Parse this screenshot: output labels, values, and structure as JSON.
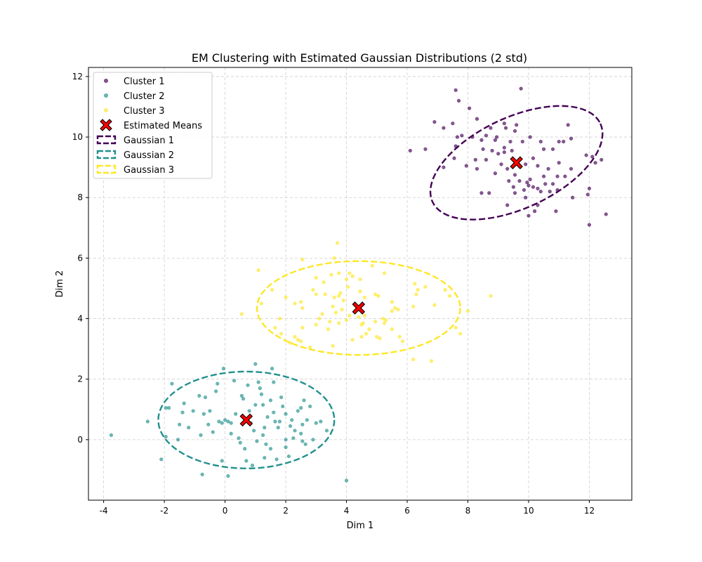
{
  "chart_data": {
    "type": "scatter",
    "title": "EM Clustering with Estimated Gaussian Distributions (2 std)",
    "xlabel": "Dim 1",
    "ylabel": "Dim 2",
    "xlim": [
      -4.5,
      13.4
    ],
    "ylim": [
      -2.0,
      12.3
    ],
    "xticks": [
      -4,
      -2,
      0,
      2,
      4,
      6,
      8,
      10,
      12
    ],
    "yticks": [
      0,
      2,
      4,
      6,
      8,
      10,
      12
    ],
    "grid": true,
    "legend_position": "top-left",
    "series": [
      {
        "name": "Cluster 1",
        "kind": "points",
        "color": "#440154",
        "points": [
          [
            7.6,
            11.55
          ],
          [
            9.75,
            11.6
          ],
          [
            7.7,
            11.2
          ],
          [
            8.05,
            10.95
          ],
          [
            8.3,
            10.6
          ],
          [
            6.9,
            10.5
          ],
          [
            7.5,
            10.45
          ],
          [
            9.2,
            10.45
          ],
          [
            9.6,
            10.4
          ],
          [
            11.3,
            10.4
          ],
          [
            7.2,
            10.3
          ],
          [
            8.75,
            10.3
          ],
          [
            9.25,
            10.3
          ],
          [
            9.55,
            10.2
          ],
          [
            8.15,
            10.0
          ],
          [
            8.6,
            10.05
          ],
          [
            8.95,
            10.0
          ],
          [
            10.05,
            10.0
          ],
          [
            11.4,
            9.95
          ],
          [
            7.8,
            10.05
          ],
          [
            8.45,
            9.9
          ],
          [
            8.9,
            9.9
          ],
          [
            9.4,
            9.85
          ],
          [
            9.8,
            9.85
          ],
          [
            10.4,
            9.85
          ],
          [
            11.0,
            9.85
          ],
          [
            11.15,
            9.85
          ],
          [
            7.6,
            9.7
          ],
          [
            8.5,
            9.6
          ],
          [
            8.8,
            9.55
          ],
          [
            9.2,
            9.5
          ],
          [
            9.45,
            9.55
          ],
          [
            10.8,
            9.6
          ],
          [
            9.0,
            9.45
          ],
          [
            11.9,
            9.4
          ],
          [
            12.1,
            9.35
          ],
          [
            7.55,
            9.3
          ],
          [
            8.25,
            9.25
          ],
          [
            8.6,
            9.25
          ],
          [
            10.15,
            9.3
          ],
          [
            12.4,
            9.25
          ],
          [
            11.0,
            9.15
          ],
          [
            12.2,
            9.15
          ],
          [
            7.95,
            9.05
          ],
          [
            9.1,
            9.1
          ],
          [
            9.9,
            9.1
          ],
          [
            10.3,
            9.05
          ],
          [
            7.2,
            9.0
          ],
          [
            8.3,
            8.95
          ],
          [
            9.3,
            8.95
          ],
          [
            10.65,
            8.95
          ],
          [
            11.4,
            8.95
          ],
          [
            8.9,
            8.8
          ],
          [
            9.55,
            8.75
          ],
          [
            10.5,
            8.7
          ],
          [
            10.95,
            8.7
          ],
          [
            11.2,
            8.7
          ],
          [
            10.05,
            8.6
          ],
          [
            9.95,
            8.5
          ],
          [
            10.0,
            8.4
          ],
          [
            10.55,
            8.45
          ],
          [
            10.8,
            8.45
          ],
          [
            9.35,
            8.55
          ],
          [
            9.7,
            8.55
          ],
          [
            10.15,
            8.35
          ],
          [
            10.3,
            8.3
          ],
          [
            9.5,
            8.35
          ],
          [
            10.95,
            8.25
          ],
          [
            9.85,
            8.25
          ],
          [
            10.4,
            8.2
          ],
          [
            10.7,
            8.2
          ],
          [
            11.95,
            8.1
          ],
          [
            9.55,
            8.15
          ],
          [
            8.45,
            8.15
          ],
          [
            8.7,
            8.15
          ],
          [
            9.9,
            8.0
          ],
          [
            11.45,
            8.0
          ],
          [
            12.0,
            8.3
          ],
          [
            9.3,
            7.75
          ],
          [
            10.3,
            7.75
          ],
          [
            10.2,
            7.55
          ],
          [
            10.9,
            7.55
          ],
          [
            10.0,
            7.4
          ],
          [
            12.55,
            7.45
          ],
          [
            12.0,
            7.1
          ],
          [
            6.1,
            9.55
          ],
          [
            6.6,
            9.6
          ],
          [
            7.65,
            10.0
          ],
          [
            9.2,
            9.65
          ],
          [
            10.5,
            9.6
          ]
        ]
      },
      {
        "name": "Cluster 2",
        "kind": "points",
        "color": "#21918c",
        "points": [
          [
            -3.75,
            0.15
          ],
          [
            -2.55,
            0.6
          ],
          [
            -2.1,
            -0.65
          ],
          [
            -1.95,
            0.1
          ],
          [
            -1.85,
            1.05
          ],
          [
            -1.95,
            1.05
          ],
          [
            -1.75,
            1.85
          ],
          [
            -1.55,
            0.0
          ],
          [
            -1.5,
            0.5
          ],
          [
            -1.4,
            0.9
          ],
          [
            -1.35,
            1.2
          ],
          [
            -1.2,
            0.4
          ],
          [
            -1.05,
            0.95
          ],
          [
            -0.85,
            1.45
          ],
          [
            -0.8,
            0.15
          ],
          [
            -0.7,
            0.85
          ],
          [
            -0.65,
            1.4
          ],
          [
            -0.55,
            0.5
          ],
          [
            -0.4,
            0.25
          ],
          [
            -0.3,
            1.6
          ],
          [
            -0.25,
            1.85
          ],
          [
            -0.2,
            0.6
          ],
          [
            -0.1,
            0.55
          ],
          [
            0.0,
            0.65
          ],
          [
            0.1,
            0.6
          ],
          [
            -0.05,
            2.35
          ],
          [
            0.2,
            0.2
          ],
          [
            0.2,
            0.55
          ],
          [
            0.35,
            0.85
          ],
          [
            0.55,
            1.45
          ],
          [
            0.6,
            1.35
          ],
          [
            0.75,
            1.8
          ],
          [
            0.85,
            0.55
          ],
          [
            1.0,
            2.5
          ],
          [
            1.1,
            1.9
          ],
          [
            1.15,
            1.7
          ],
          [
            1.2,
            1.5
          ],
          [
            1.0,
            1.15
          ],
          [
            0.95,
            0.3
          ],
          [
            1.05,
            -0.05
          ],
          [
            0.5,
            -0.1
          ],
          [
            0.65,
            -0.3
          ],
          [
            1.25,
            1.15
          ],
          [
            1.4,
            0.75
          ],
          [
            1.5,
            1.3
          ],
          [
            1.55,
            2.35
          ],
          [
            1.6,
            0.9
          ],
          [
            1.65,
            0.6
          ],
          [
            1.75,
            0.4
          ],
          [
            1.8,
            0.6
          ],
          [
            1.9,
            1.1
          ],
          [
            2.0,
            0.85
          ],
          [
            2.15,
            0.45
          ],
          [
            2.2,
            0.65
          ],
          [
            2.25,
            0.05
          ],
          [
            2.4,
            0.95
          ],
          [
            2.5,
            0.2
          ],
          [
            2.55,
            0.5
          ],
          [
            2.6,
            1.3
          ],
          [
            2.7,
            0.65
          ],
          [
            2.8,
            1.1
          ],
          [
            2.9,
            0.0
          ],
          [
            3.0,
            0.55
          ],
          [
            3.15,
            0.6
          ],
          [
            3.35,
            0.3
          ],
          [
            1.5,
            -0.3
          ],
          [
            1.3,
            -0.6
          ],
          [
            1.7,
            -0.65
          ],
          [
            2.0,
            -0.25
          ],
          [
            2.1,
            -0.55
          ],
          [
            2.55,
            -0.05
          ],
          [
            2.65,
            -0.15
          ],
          [
            0.7,
            -0.7
          ],
          [
            0.9,
            -0.85
          ],
          [
            0.1,
            -1.2
          ],
          [
            -0.75,
            -1.15
          ],
          [
            -0.1,
            -0.7
          ],
          [
            1.35,
            -0.15
          ],
          [
            1.25,
            0.15
          ],
          [
            2.0,
            0.0
          ],
          [
            4.0,
            -1.35
          ],
          [
            1.6,
            1.9
          ],
          [
            2.5,
            1.05
          ],
          [
            0.3,
            1.95
          ],
          [
            1.85,
            1.4
          ],
          [
            0.45,
            0.05
          ],
          [
            -0.5,
            0.95
          ],
          [
            0.8,
            0.95
          ],
          [
            1.3,
            0.4
          ],
          [
            2.3,
            0.3
          ]
        ]
      },
      {
        "name": "Cluster 3",
        "kind": "points",
        "color": "#fde725",
        "points": [
          [
            3.7,
            6.5
          ],
          [
            3.6,
            6.0
          ],
          [
            2.55,
            5.95
          ],
          [
            4.85,
            5.75
          ],
          [
            1.1,
            5.6
          ],
          [
            3.75,
            5.5
          ],
          [
            4.1,
            5.5
          ],
          [
            5.25,
            5.5
          ],
          [
            3.5,
            5.45
          ],
          [
            4.2,
            5.4
          ],
          [
            3.0,
            5.35
          ],
          [
            4.0,
            5.3
          ],
          [
            4.45,
            5.3
          ],
          [
            3.25,
            5.2
          ],
          [
            4.05,
            5.05
          ],
          [
            1.55,
            4.95
          ],
          [
            4.45,
            4.9
          ],
          [
            6.25,
            5.15
          ],
          [
            6.35,
            4.95
          ],
          [
            6.6,
            5.05
          ],
          [
            7.25,
            4.95
          ],
          [
            3.0,
            4.8
          ],
          [
            3.3,
            4.8
          ],
          [
            4.95,
            4.8
          ],
          [
            5.05,
            4.75
          ],
          [
            6.3,
            4.8
          ],
          [
            7.4,
            4.75
          ],
          [
            8.75,
            4.75
          ],
          [
            2.0,
            4.7
          ],
          [
            2.5,
            4.55
          ],
          [
            3.6,
            4.7
          ],
          [
            3.75,
            4.75
          ],
          [
            3.8,
            4.85
          ],
          [
            3.9,
            4.6
          ],
          [
            4.6,
            4.7
          ],
          [
            2.3,
            4.5
          ],
          [
            5.5,
            4.55
          ],
          [
            6.2,
            4.4
          ],
          [
            6.9,
            4.45
          ],
          [
            1.2,
            4.5
          ],
          [
            2.55,
            4.35
          ],
          [
            3.55,
            4.4
          ],
          [
            3.85,
            4.3
          ],
          [
            4.3,
            4.3
          ],
          [
            5.6,
            4.35
          ],
          [
            5.7,
            4.3
          ],
          [
            5.5,
            4.25
          ],
          [
            0.55,
            4.15
          ],
          [
            3.65,
            4.2
          ],
          [
            3.2,
            4.15
          ],
          [
            4.1,
            4.1
          ],
          [
            4.4,
            4.05
          ],
          [
            4.6,
            4.1
          ],
          [
            8.0,
            4.25
          ],
          [
            1.8,
            4.0
          ],
          [
            3.1,
            4.0
          ],
          [
            3.45,
            3.9
          ],
          [
            3.75,
            3.85
          ],
          [
            4.0,
            3.95
          ],
          [
            4.5,
            3.8
          ],
          [
            4.95,
            3.9
          ],
          [
            5.2,
            4.0
          ],
          [
            5.25,
            3.85
          ],
          [
            1.65,
            3.7
          ],
          [
            2.55,
            3.7
          ],
          [
            3.0,
            3.8
          ],
          [
            3.4,
            3.65
          ],
          [
            4.55,
            3.85
          ],
          [
            4.75,
            3.65
          ],
          [
            7.6,
            3.7
          ],
          [
            7.75,
            3.5
          ],
          [
            1.85,
            3.5
          ],
          [
            2.3,
            3.4
          ],
          [
            2.4,
            3.3
          ],
          [
            2.15,
            3.2
          ],
          [
            4.5,
            3.4
          ],
          [
            4.65,
            3.5
          ],
          [
            5.0,
            3.4
          ],
          [
            5.1,
            3.35
          ],
          [
            5.5,
            3.65
          ],
          [
            5.75,
            3.4
          ],
          [
            5.85,
            3.25
          ],
          [
            2.5,
            3.25
          ],
          [
            2.8,
            3.05
          ],
          [
            6.2,
            2.65
          ],
          [
            6.8,
            2.6
          ],
          [
            4.2,
            3.3
          ],
          [
            5.3,
            3.95
          ],
          [
            3.55,
            3.1
          ],
          [
            2.9,
            4.95
          ]
        ]
      }
    ],
    "means": {
      "name": "Estimated Means",
      "color": "#ff0000",
      "points": [
        [
          9.6,
          9.15
        ],
        [
          0.7,
          0.65
        ],
        [
          4.4,
          4.35
        ]
      ]
    },
    "ellipses": [
      {
        "name": "Gaussian 1",
        "color": "#440154",
        "cx": 9.6,
        "cy": 9.15,
        "rx": 3.05,
        "ry": 1.5,
        "angle_deg": -25
      },
      {
        "name": "Gaussian 2",
        "color": "#21918c",
        "cx": 0.7,
        "cy": 0.65,
        "rx": 2.9,
        "ry": 1.6,
        "angle_deg": 0
      },
      {
        "name": "Gaussian 3",
        "color": "#fde725",
        "cx": 4.4,
        "cy": 4.35,
        "rx": 3.35,
        "ry": 1.55,
        "angle_deg": 0
      }
    ]
  }
}
